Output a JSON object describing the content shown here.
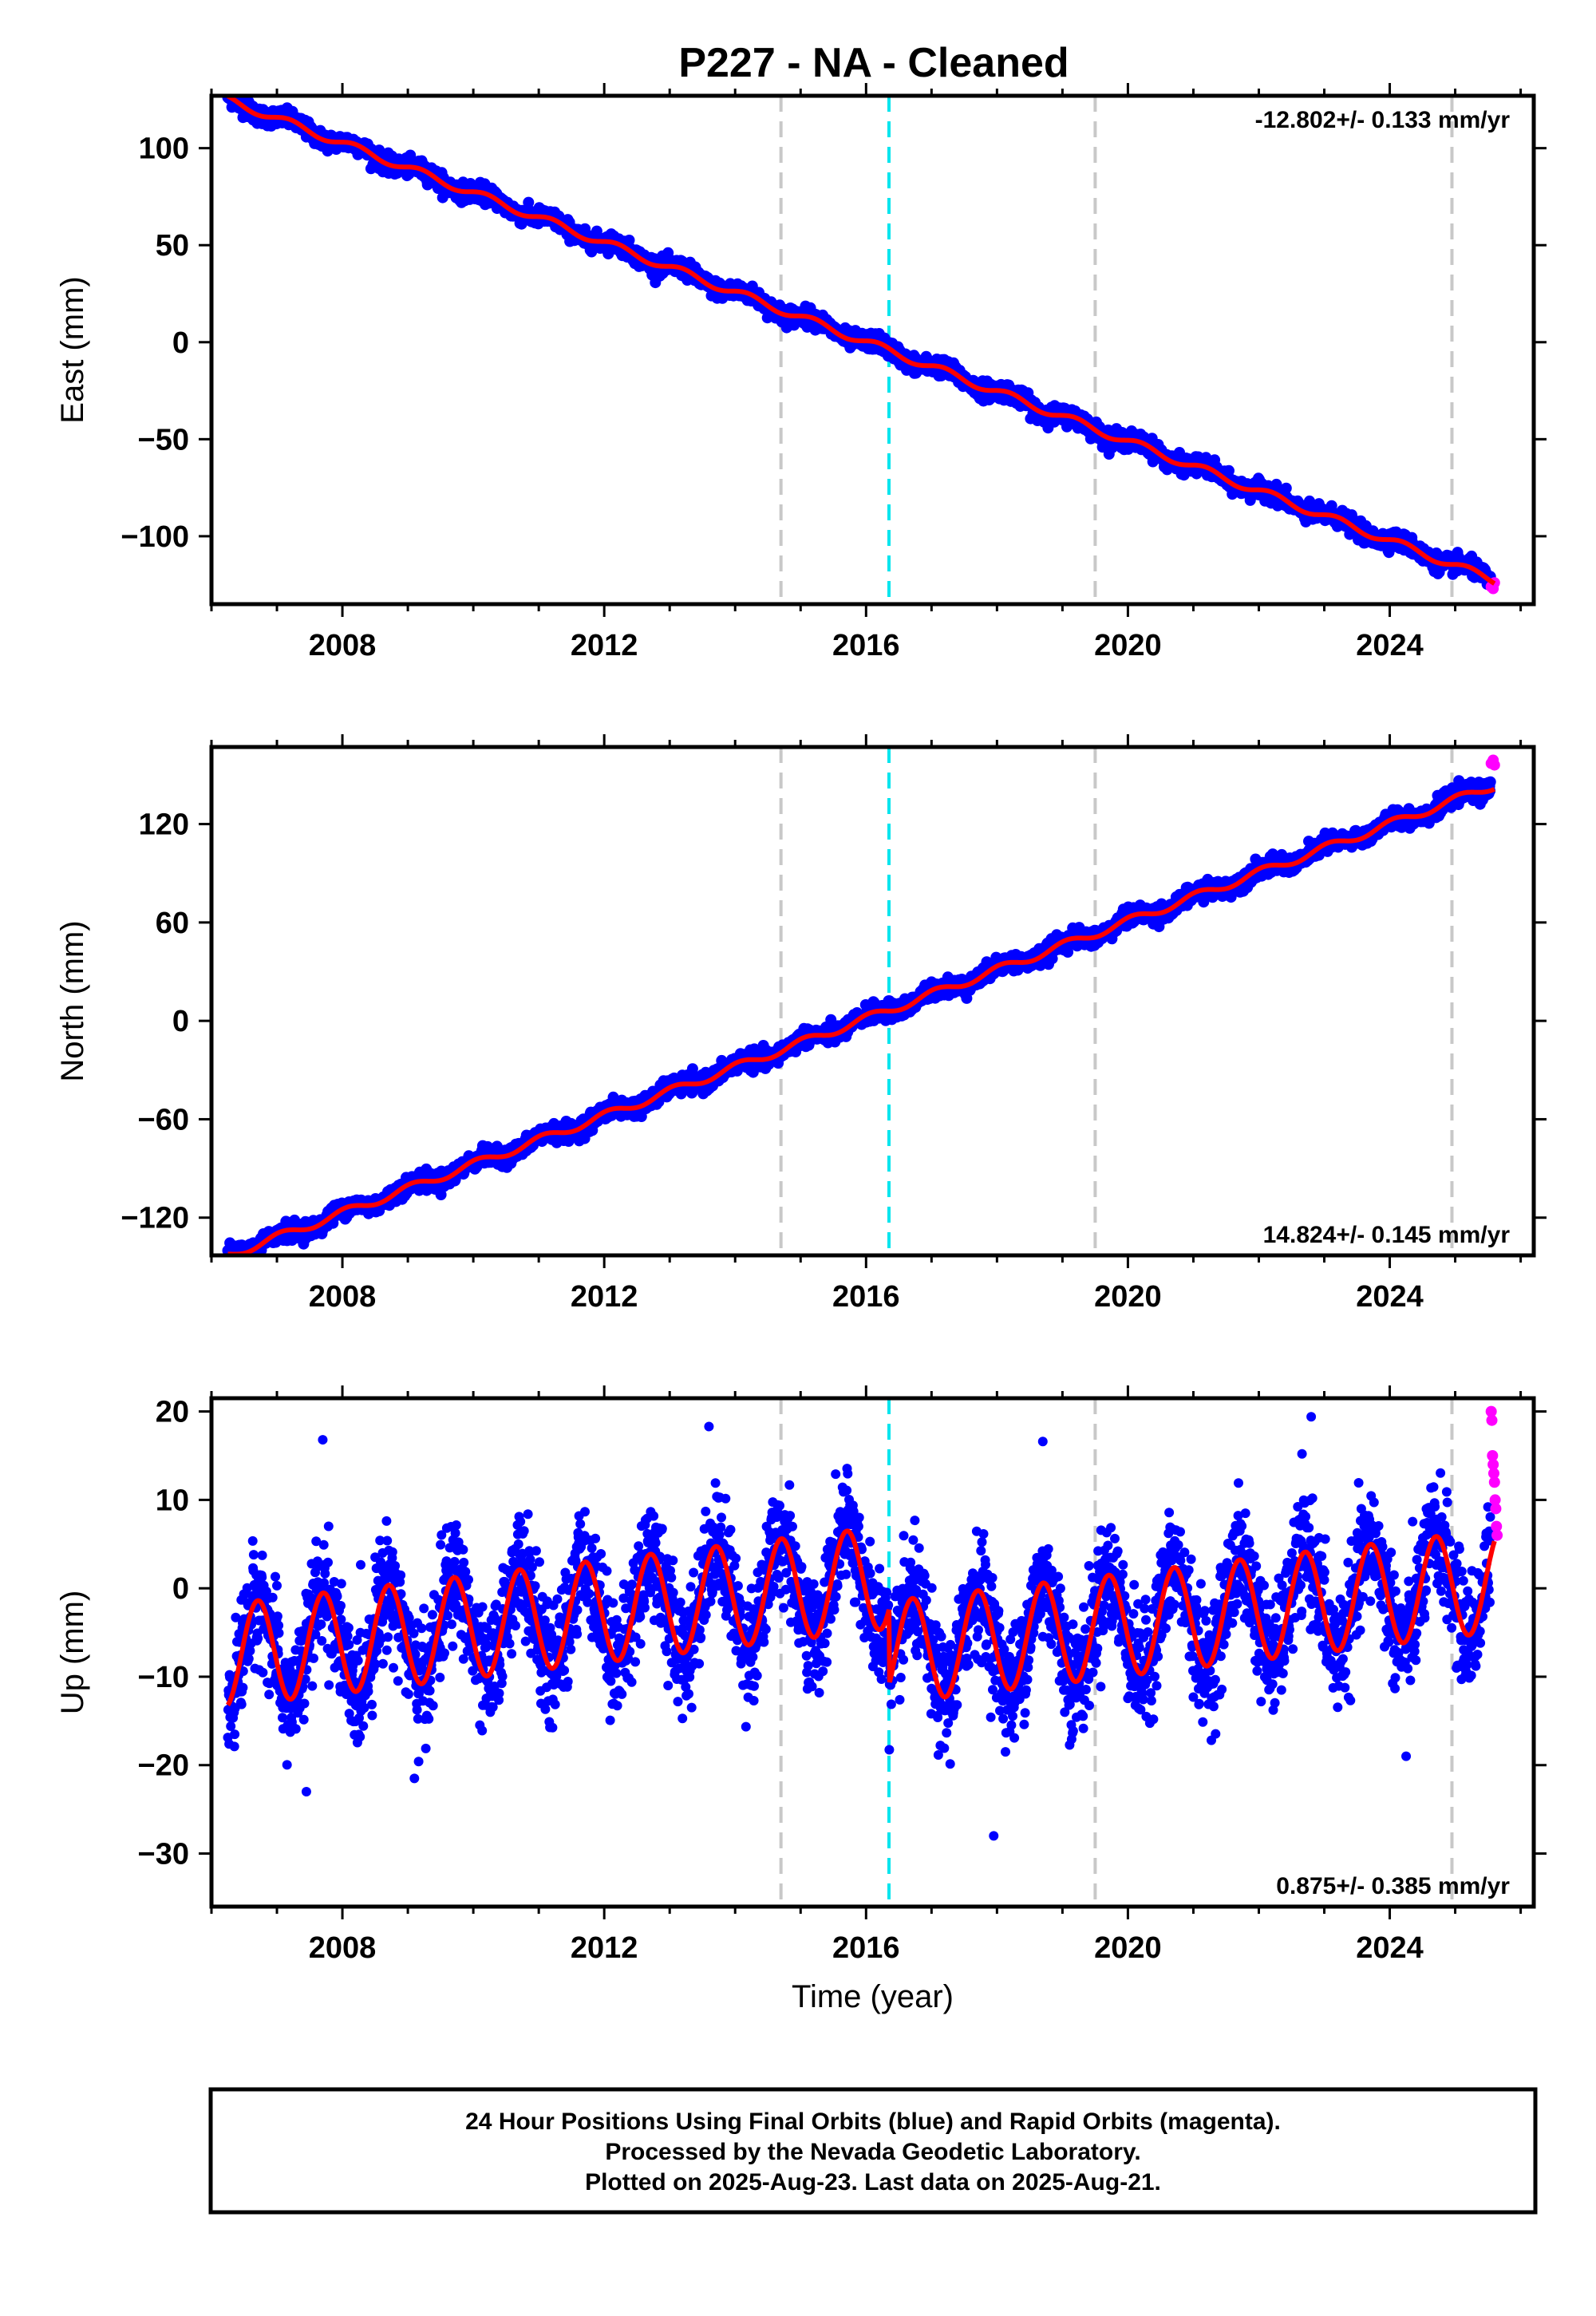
{
  "title": "P227  - NA - Cleaned",
  "footer": {
    "line1": "24 Hour Positions Using Final Orbits (blue) and Rapid Orbits (magenta).",
    "line2": "Processed by the Nevada Geodetic Laboratory.",
    "line3": "Plotted on 2025-Aug-23. Last data on 2025-Aug-21."
  },
  "colors": {
    "final_orbits": "#0000ff",
    "rapid_orbits": "#ff00ff",
    "model_fit": "#ff0000",
    "equipment_change": "#c8c8c8",
    "earthquake_event": "#00e5ee",
    "frame": "#000000"
  },
  "chart_data": [
    {
      "type": "scatter",
      "ylabel": "East (mm)",
      "xlabel": "",
      "rate_label": "-12.802+/- 0.133 mm/yr",
      "xlim": [
        2006.0,
        2026.2
      ],
      "ylim": [
        -135,
        127
      ],
      "xticks": [
        2008,
        2012,
        2016,
        2020,
        2024
      ],
      "xtick_labels": [
        "2008",
        "2012",
        "2016",
        "2020",
        "2024"
      ],
      "yticks": [
        -100,
        -50,
        0,
        50,
        100
      ],
      "ytick_labels": [
        "−100",
        "−50",
        "0",
        "50",
        "100"
      ],
      "vlines_gray": [
        2014.7,
        2019.5,
        2024.95
      ],
      "vlines_cyan": [
        2016.35
      ],
      "model": {
        "start": 2006.25,
        "end": 2025.6,
        "ref_epoch": 2015.5,
        "intercept": 6.5,
        "rate": -12.802,
        "annual_amplitude": 2.0,
        "annual_phase": 0.3,
        "offsets": [],
        "noise": 2.2
      },
      "rapid": [
        [
          2025.55,
          -126
        ],
        [
          2025.58,
          -127
        ],
        [
          2025.6,
          -124
        ]
      ]
    },
    {
      "type": "scatter",
      "ylabel": "North (mm)",
      "xlabel": "",
      "rate_label": "14.824+/- 0.145 mm/yr",
      "xlim": [
        2006.0,
        2026.2
      ],
      "ylim": [
        -143,
        167
      ],
      "xticks": [
        2008,
        2012,
        2016,
        2020,
        2024
      ],
      "xtick_labels": [
        "2008",
        "2012",
        "2016",
        "2020",
        "2024"
      ],
      "yticks": [
        -120,
        -60,
        0,
        60,
        120
      ],
      "ytick_labels": [
        "−120",
        "−60",
        "0",
        "60",
        "120"
      ],
      "vlines_gray": [
        2014.7,
        2019.5,
        2024.95
      ],
      "vlines_cyan": [
        2016.35
      ],
      "model": {
        "start": 2006.25,
        "end": 2025.6,
        "ref_epoch": 2015.5,
        "intercept": -6.0,
        "rate": 14.824,
        "annual_amplitude": 2.5,
        "annual_phase": 1.2,
        "offsets": [],
        "noise": 2.6
      },
      "rapid": [
        [
          2025.55,
          157
        ],
        [
          2025.58,
          159
        ],
        [
          2025.6,
          156
        ]
      ]
    },
    {
      "type": "scatter",
      "ylabel": "Up (mm)",
      "xlabel": "Time (year)",
      "rate_label": "0.875+/- 0.385 mm/yr",
      "xlim": [
        2006.0,
        2026.2
      ],
      "ylim": [
        -36,
        21.5
      ],
      "xticks": [
        2008,
        2012,
        2016,
        2020,
        2024
      ],
      "xtick_labels": [
        "2008",
        "2012",
        "2016",
        "2020",
        "2024"
      ],
      "yticks": [
        -30,
        -20,
        -10,
        0,
        10,
        20
      ],
      "ytick_labels": [
        "−30",
        "−20",
        "−10",
        "0",
        "10",
        "20"
      ],
      "vlines_gray": [
        2014.7,
        2019.5,
        2024.95
      ],
      "vlines_cyan": [
        2016.35
      ],
      "model": {
        "start": 2006.25,
        "end": 2025.6,
        "ref_epoch": 2015.5,
        "intercept": 0.5,
        "rate": 0.875,
        "annual_amplitude": 5.8,
        "annual_phase": 3.4,
        "offsets": [
          [
            2016.35,
            -8.5
          ]
        ],
        "noise": 3.2
      },
      "rapid": [
        [
          2025.55,
          20
        ],
        [
          2025.56,
          19
        ],
        [
          2025.57,
          15
        ],
        [
          2025.58,
          14
        ],
        [
          2025.59,
          13
        ],
        [
          2025.6,
          12
        ],
        [
          2025.61,
          10
        ],
        [
          2025.62,
          9
        ],
        [
          2025.63,
          7
        ],
        [
          2025.64,
          6
        ]
      ]
    }
  ]
}
